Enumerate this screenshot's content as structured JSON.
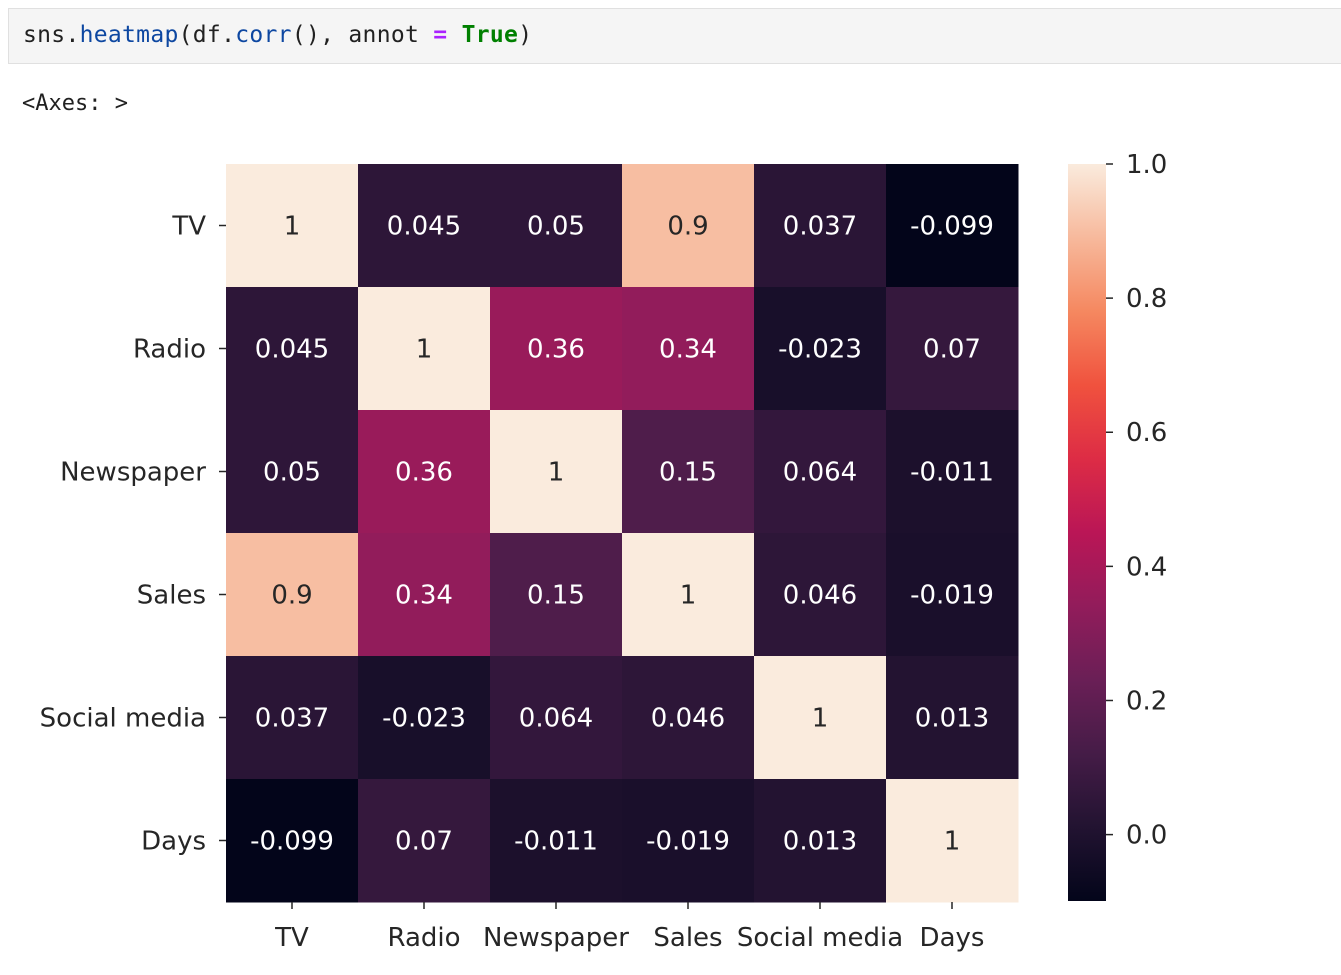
{
  "code_cell": {
    "prefix": "sns.",
    "fn": "heatmap",
    "middle": "(df.",
    "method": "corr",
    "after": "(), annot ",
    "op": "=",
    "space": " ",
    "keyword": "True",
    "close": ")"
  },
  "output_cell": {
    "text": "<Axes: >"
  },
  "colors": {
    "code_background": "#f5f5f5",
    "function_token": "#0d47a1",
    "operator_token": "#aa22ff",
    "keyword_token": "#008000"
  },
  "chart_data": {
    "type": "heatmap",
    "colormap": "rocket",
    "annotated": true,
    "labels": [
      "TV",
      "Radio",
      "Newspaper",
      "Sales",
      "Social media",
      "Days"
    ],
    "values": [
      [
        1,
        0.045,
        0.05,
        0.9,
        0.037,
        -0.099
      ],
      [
        0.045,
        1,
        0.36,
        0.34,
        -0.023,
        0.07
      ],
      [
        0.05,
        0.36,
        1,
        0.15,
        0.064,
        -0.011
      ],
      [
        0.9,
        0.34,
        0.15,
        1,
        0.046,
        -0.019
      ],
      [
        0.037,
        -0.023,
        0.064,
        0.046,
        1,
        0.013
      ],
      [
        -0.099,
        0.07,
        -0.011,
        -0.019,
        0.013,
        1
      ]
    ],
    "annotations": [
      [
        "1",
        "0.045",
        "0.05",
        "0.9",
        "0.037",
        "-0.099"
      ],
      [
        "0.045",
        "1",
        "0.36",
        "0.34",
        "-0.023",
        "0.07"
      ],
      [
        "0.05",
        "0.36",
        "1",
        "0.15",
        "0.064",
        "-0.011"
      ],
      [
        "0.9",
        "0.34",
        "0.15",
        "1",
        "0.046",
        "-0.019"
      ],
      [
        "0.037",
        "-0.023",
        "0.064",
        "0.046",
        "1",
        "0.013"
      ],
      [
        "-0.099",
        "0.07",
        "-0.011",
        "-0.019",
        "0.013",
        "1"
      ]
    ],
    "colorbar": {
      "vmin": -0.099,
      "vmax": 1,
      "ticks": [
        0.0,
        0.2,
        0.4,
        0.6,
        0.8,
        1.0
      ],
      "tick_labels": [
        "0.0",
        "0.2",
        "0.4",
        "0.6",
        "0.8",
        "1.0"
      ]
    }
  }
}
